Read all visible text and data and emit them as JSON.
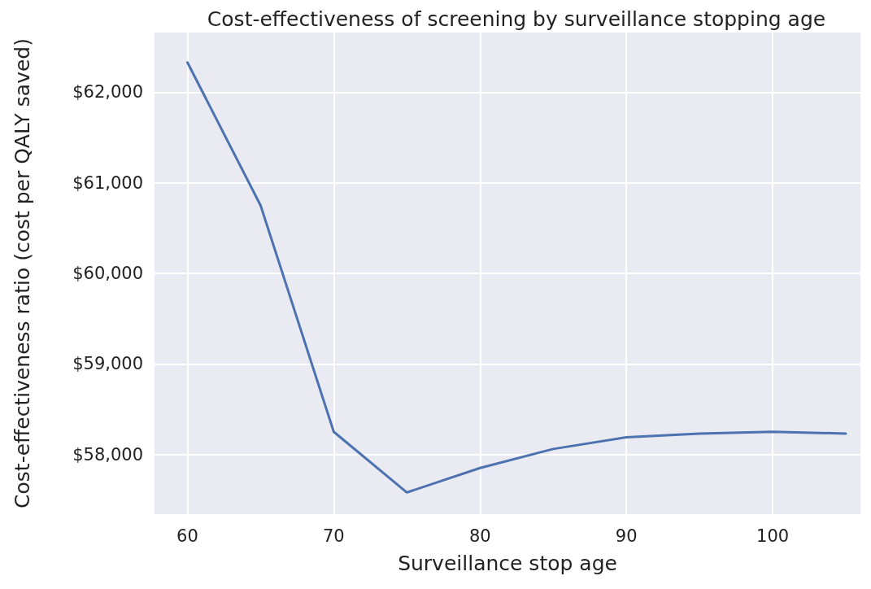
{
  "chart_data": {
    "type": "line",
    "title": "Cost-effectiveness of screening by surveillance stopping age",
    "xlabel": "Surveillance stop age",
    "ylabel": "Cost-effectiveness ratio (cost per QALY saved)",
    "x": [
      60,
      65,
      70,
      75,
      80,
      85,
      90,
      95,
      100,
      105
    ],
    "series": [
      {
        "color": "#4c72b0",
        "values": [
          62330,
          60750,
          58250,
          57580,
          57850,
          58060,
          58190,
          58230,
          58250,
          58230
        ]
      }
    ],
    "xlim": [
      57.75,
      106
    ],
    "xticks": [
      60,
      70,
      80,
      90,
      100
    ],
    "ylim": [
      57340,
      62660
    ],
    "yticks": [
      {
        "value": 58000,
        "label": "$58,000"
      },
      {
        "value": 59000,
        "label": "$59,000"
      },
      {
        "value": 60000,
        "label": "$60,000"
      },
      {
        "value": 61000,
        "label": "$61,000"
      },
      {
        "value": 62000,
        "label": "$62,000"
      }
    ],
    "grid": true,
    "marker": "none",
    "line_style": "solid"
  }
}
